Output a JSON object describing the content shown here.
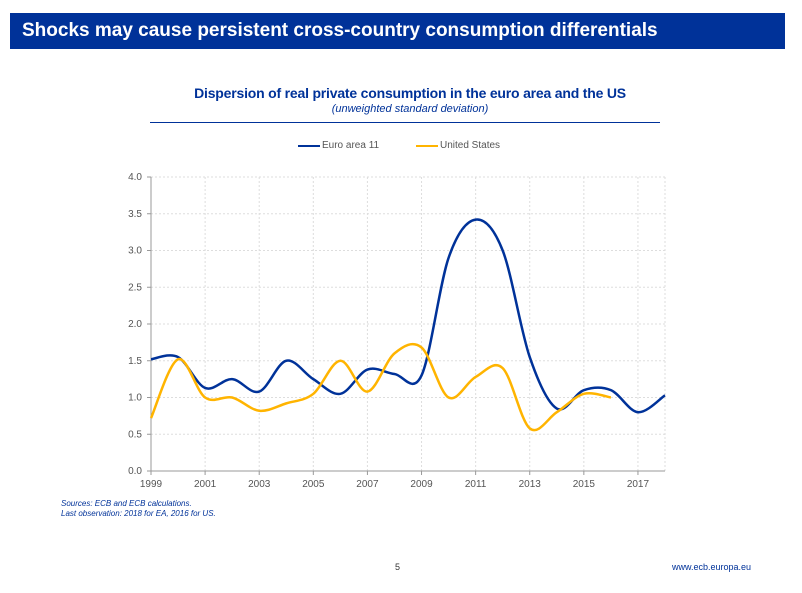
{
  "slide": {
    "title": "Shocks may cause persistent cross-country consumption differentials",
    "page_number": "5",
    "url": "www.ecb.europa.eu",
    "notes": [
      "Sources: ECB and ECB calculations.",
      "Last observation: 2018 for EA, 2016 for US."
    ],
    "colors": {
      "brand": "#003299",
      "us": "#FFB400"
    }
  },
  "chart_data": {
    "type": "line",
    "title": "Dispersion of real private consumption in the euro area and the US",
    "subtitle": "(unweighted standard deviation)",
    "xlabel": "",
    "ylabel": "",
    "xlim": [
      1999,
      2018
    ],
    "ylim": [
      0,
      4.0
    ],
    "x_ticks": [
      "1999",
      "2001",
      "2003",
      "2005",
      "2007",
      "2009",
      "2011",
      "2013",
      "2015",
      "2017"
    ],
    "y_ticks": [
      "0.0",
      "0.5",
      "1.0",
      "1.5",
      "2.0",
      "2.5",
      "3.0",
      "3.5",
      "4.0"
    ],
    "grid": true,
    "legend_position": "top-center",
    "series": [
      {
        "name": "Euro area 11",
        "color": "#003299",
        "x": [
          1999,
          2000,
          2001,
          2002,
          2003,
          2004,
          2005,
          2006,
          2007,
          2008,
          2009,
          2010,
          2011,
          2012,
          2013,
          2014,
          2015,
          2016,
          2017,
          2018
        ],
        "values": [
          1.52,
          1.55,
          1.13,
          1.25,
          1.08,
          1.5,
          1.25,
          1.05,
          1.38,
          1.32,
          1.3,
          2.9,
          3.42,
          3.0,
          1.55,
          0.85,
          1.1,
          1.1,
          0.8,
          1.03
        ]
      },
      {
        "name": "United States",
        "color": "#FFB400",
        "x": [
          1999,
          2000,
          2001,
          2002,
          2003,
          2004,
          2005,
          2006,
          2007,
          2008,
          2009,
          2010,
          2011,
          2012,
          2013,
          2014,
          2015,
          2016
        ],
        "values": [
          0.72,
          1.52,
          1.0,
          1.0,
          0.82,
          0.92,
          1.05,
          1.5,
          1.08,
          1.6,
          1.68,
          1.0,
          1.28,
          1.4,
          0.58,
          0.8,
          1.05,
          1.0
        ]
      }
    ]
  }
}
